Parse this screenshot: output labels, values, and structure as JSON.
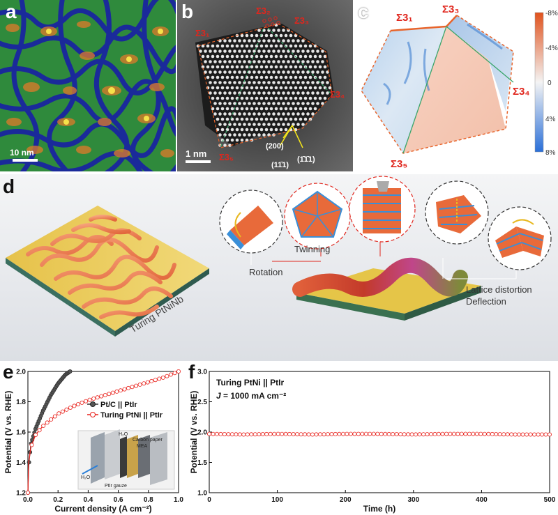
{
  "figure": {
    "panel_labels": {
      "a": "a",
      "b": "b",
      "c": "c",
      "d": "d",
      "e": "e",
      "f": "f"
    },
    "colors": {
      "red_label": "#e0261d",
      "orange_line": "#e8642b",
      "green_line": "#3aa56a",
      "red_curve": "#e8201a",
      "black_curve": "#333333"
    }
  },
  "panel_a": {
    "scalebar": "10 nm"
  },
  "panel_b": {
    "scalebar": "1 nm",
    "boundaries": [
      "Σ3₁",
      "Σ3₂",
      "Σ3₃",
      "Σ3₄",
      "Σ3₅"
    ],
    "planes": [
      "(200)",
      "(11̄1)",
      "(1̄1̄1)"
    ]
  },
  "panel_c": {
    "boundaries": [
      "Σ3₁",
      "Σ3₃",
      "Σ3₄",
      "Σ3₅"
    ],
    "colorbar_ticks": [
      "-8%",
      "-4%",
      "0",
      "4%",
      "8%"
    ]
  },
  "panel_d": {
    "material_label": "Turing PtNiNb",
    "mechanisms": {
      "twinning": "Twinning",
      "rotation": "Rotation",
      "distortion": "Lattice distortion",
      "deflection": "Deflection"
    }
  },
  "panel_e": {
    "ylabel": "Potential (V vs. RHE)",
    "xlabel": "Current density (A cm⁻²)",
    "inset": {
      "water_top": "H₂O",
      "water_left": "H₂O",
      "carbon": "Carbon paper",
      "mea": "MEA",
      "gauze": "PtIr gauze"
    },
    "chart_data": {
      "type": "line",
      "xlim": [
        0,
        1.0
      ],
      "ylim": [
        1.2,
        2.0
      ],
      "xticks": [
        "0.0",
        "0.2",
        "0.4",
        "0.6",
        "0.8",
        "1.0"
      ],
      "yticks": [
        "1.2",
        "1.4",
        "1.6",
        "1.8",
        "2.0"
      ],
      "legend_position": "right",
      "series": [
        {
          "name": "Pt/C || PtIr",
          "color": "#333333",
          "points": [
            [
              0.0,
              1.2
            ],
            [
              0.005,
              1.38
            ],
            [
              0.02,
              1.52
            ],
            [
              0.05,
              1.62
            ],
            [
              0.1,
              1.74
            ],
            [
              0.15,
              1.84
            ],
            [
              0.2,
              1.92
            ],
            [
              0.25,
              1.98
            ],
            [
              0.28,
              2.0
            ]
          ]
        },
        {
          "name": "Turing PtNi || PtIr",
          "color": "#e8201a",
          "points": [
            [
              0.0,
              1.2
            ],
            [
              0.005,
              1.4
            ],
            [
              0.02,
              1.5
            ],
            [
              0.05,
              1.58
            ],
            [
              0.1,
              1.64
            ],
            [
              0.2,
              1.72
            ],
            [
              0.3,
              1.77
            ],
            [
              0.4,
              1.81
            ],
            [
              0.5,
              1.84
            ],
            [
              0.6,
              1.87
            ],
            [
              0.7,
              1.9
            ],
            [
              0.8,
              1.93
            ],
            [
              0.9,
              1.96
            ],
            [
              1.0,
              2.0
            ]
          ]
        }
      ]
    }
  },
  "panel_f": {
    "ylabel": "Potential (V vs. RHE)",
    "xlabel": "Time (h)",
    "annotation_line1": "Turing PtNi || PtIr",
    "annotation_j": "J",
    "annotation_line2": " = 1000 mA cm⁻²",
    "chart_data": {
      "type": "line",
      "xlim": [
        0,
        500
      ],
      "ylim": [
        1.0,
        3.0
      ],
      "xticks": [
        "0",
        "100",
        "200",
        "300",
        "400",
        "500"
      ],
      "yticks": [
        "1.0",
        "1.5",
        "2.0",
        "2.5",
        "3.0"
      ],
      "series": [
        {
          "name": "",
          "color": "#e8201a",
          "points": [
            [
              0,
              1.97
            ],
            [
              50,
              1.96
            ],
            [
              100,
              1.97
            ],
            [
              150,
              1.96
            ],
            [
              200,
              1.97
            ],
            [
              250,
              1.97
            ],
            [
              300,
              1.96
            ],
            [
              350,
              1.97
            ],
            [
              400,
              1.97
            ],
            [
              450,
              1.96
            ],
            [
              500,
              1.96
            ]
          ]
        }
      ]
    }
  }
}
